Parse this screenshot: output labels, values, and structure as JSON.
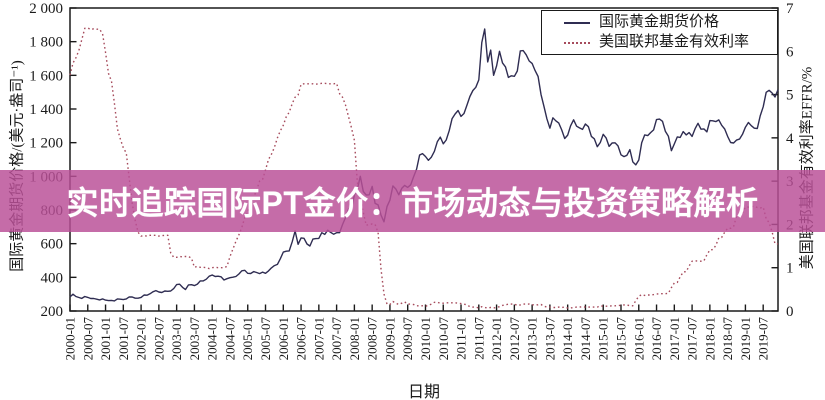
{
  "banner": {
    "text": "实时追踪国际PT金价：市场动态与投资策略解析",
    "bg_rgba": "rgba(186,80,151,0.84)"
  },
  "chart_data": {
    "type": "line",
    "xlabel": "日期",
    "ylabel_left": "国际黄金期货价格/(美元·盎司⁻¹)",
    "ylabel_right": "美国联邦基金有效利率EFFR/%",
    "x_start": "2000-01",
    "x_end": "2019-12",
    "x_interval": "monthly",
    "grid": false,
    "legend_position": "top-right",
    "ylim_left": [
      200,
      2000
    ],
    "ylim_right": [
      0,
      7
    ],
    "ytick_left_labels": [
      "2 000",
      "1 800",
      "1 600",
      "1 400",
      "1 200",
      "1 000",
      "800",
      "600",
      "400",
      "200"
    ],
    "ytick_left_values": [
      2000,
      1800,
      1600,
      1400,
      1200,
      1000,
      800,
      600,
      400,
      200
    ],
    "ytick_right_labels": [
      "7",
      "6",
      "5",
      "4",
      "3",
      "2",
      "1",
      "0"
    ],
    "ytick_right_values": [
      7,
      6,
      5,
      4,
      3,
      2,
      1,
      0
    ],
    "xtick_every_months": 6,
    "xtick_labels": [
      "2000-01",
      "2000-07",
      "2001-01",
      "2001-07",
      "2002-01",
      "2002-07",
      "2003-01",
      "2003-07",
      "2004-01",
      "2004-07",
      "2005-01",
      "2005-07",
      "2006-01",
      "2006-07",
      "2007-01",
      "2007-07",
      "2008-01",
      "2008-07",
      "2009-01",
      "2009-07",
      "2010-01",
      "2010-07",
      "2011-01",
      "2011-07",
      "2012-01",
      "2012-07",
      "2013-01",
      "2013-07",
      "2014-01",
      "2014-07",
      "2015-01",
      "2015-07",
      "2016-01",
      "2016-07",
      "2017-01",
      "2017-07",
      "2018-01",
      "2018-07",
      "2019-01",
      "2019-07"
    ],
    "series": [
      {
        "name": "国际黄金期货价格",
        "axis": "left",
        "style": "solid",
        "color": "#2f2d52",
        "values": [
          284,
          300,
          286,
          280,
          275,
          286,
          281,
          274,
          274,
          270,
          266,
          272,
          265,
          262,
          263,
          260,
          272,
          270,
          268,
          272,
          284,
          283,
          276,
          276,
          281,
          295,
          294,
          302,
          314,
          321,
          313,
          310,
          319,
          317,
          319,
          333,
          357,
          359,
          340,
          328,
          355,
          356,
          351,
          360,
          379,
          379,
          389,
          407,
          414,
          405,
          407,
          403,
          384,
          392,
          398,
          401,
          405,
          420,
          439,
          442,
          424,
          423,
          434,
          429,
          422,
          431,
          424,
          438,
          456,
          470,
          477,
          510,
          550,
          555,
          557,
          611,
          675,
          596,
          634,
          632,
          598,
          586,
          627,
          630,
          631,
          665,
          655,
          680,
          667,
          656,
          665,
          665,
          713,
          755,
          806,
          804,
          890,
          922,
          1000,
          910,
          889,
          890,
          940,
          839,
          830,
          770,
          730,
          820,
          858,
          943,
          924,
          890,
          929,
          946,
          934,
          950,
          997,
          1043,
          1127,
          1135,
          1118,
          1095,
          1114,
          1149,
          1205,
          1233,
          1193,
          1216,
          1271,
          1343,
          1370,
          1391,
          1356,
          1373,
          1424,
          1474,
          1510,
          1529,
          1573,
          1795,
          1875,
          1680,
          1750,
          1600,
          1656,
          1743,
          1674,
          1650,
          1588,
          1597,
          1594,
          1626,
          1745,
          1747,
          1722,
          1685,
          1671,
          1628,
          1593,
          1487,
          1414,
          1342,
          1286,
          1348,
          1330,
          1316,
          1276,
          1225,
          1245,
          1300,
          1336,
          1298,
          1288,
          1279,
          1311,
          1295,
          1237,
          1223,
          1176,
          1201,
          1250,
          1227,
          1178,
          1198,
          1199,
          1181,
          1128,
          1117,
          1125,
          1159,
          1086,
          1068,
          1097,
          1200,
          1246,
          1242,
          1260,
          1276,
          1337,
          1340,
          1327,
          1267,
          1238,
          1152,
          1192,
          1234,
          1231,
          1266,
          1246,
          1260,
          1237,
          1283,
          1315,
          1280,
          1282,
          1264,
          1331,
          1330,
          1325,
          1335,
          1303,
          1281,
          1238,
          1201,
          1198,
          1215,
          1221,
          1250,
          1292,
          1320,
          1301,
          1286,
          1284,
          1359,
          1413,
          1499,
          1511,
          1495,
          1471,
          1515
        ]
      },
      {
        "name": "美国联邦基金有效利率",
        "axis": "right",
        "style": "dotted",
        "color": "#a64b5c",
        "values": [
          5.45,
          5.73,
          5.85,
          6.02,
          6.27,
          6.53,
          6.54,
          6.5,
          6.52,
          6.51,
          6.51,
          6.4,
          5.98,
          5.49,
          5.31,
          4.8,
          4.21,
          3.97,
          3.77,
          3.65,
          3.07,
          2.49,
          2.09,
          1.82,
          1.73,
          1.74,
          1.73,
          1.75,
          1.75,
          1.75,
          1.73,
          1.74,
          1.75,
          1.75,
          1.34,
          1.24,
          1.24,
          1.26,
          1.25,
          1.26,
          1.26,
          1.22,
          1.01,
          1.03,
          1.01,
          1.01,
          1.0,
          0.98,
          1.0,
          1.01,
          1.0,
          1.0,
          1.0,
          1.03,
          1.26,
          1.43,
          1.61,
          1.76,
          1.93,
          2.16,
          2.28,
          2.5,
          2.63,
          2.79,
          3.0,
          3.04,
          3.26,
          3.5,
          3.62,
          3.78,
          4.0,
          4.16,
          4.29,
          4.49,
          4.59,
          4.79,
          4.94,
          4.99,
          5.24,
          5.25,
          5.25,
          5.25,
          5.25,
          5.24,
          5.25,
          5.26,
          5.26,
          5.25,
          5.25,
          5.25,
          5.26,
          5.02,
          4.94,
          4.76,
          4.49,
          4.24,
          3.94,
          2.98,
          2.61,
          2.28,
          1.98,
          2.0,
          2.01,
          2.0,
          1.81,
          0.97,
          0.39,
          0.16,
          0.15,
          0.22,
          0.18,
          0.15,
          0.18,
          0.21,
          0.16,
          0.16,
          0.15,
          0.12,
          0.12,
          0.12,
          0.11,
          0.13,
          0.16,
          0.2,
          0.2,
          0.18,
          0.18,
          0.19,
          0.19,
          0.19,
          0.19,
          0.18,
          0.17,
          0.16,
          0.14,
          0.1,
          0.09,
          0.09,
          0.07,
          0.1,
          0.08,
          0.07,
          0.08,
          0.07,
          0.08,
          0.1,
          0.13,
          0.14,
          0.16,
          0.16,
          0.16,
          0.13,
          0.14,
          0.16,
          0.16,
          0.16,
          0.14,
          0.15,
          0.14,
          0.15,
          0.11,
          0.09,
          0.09,
          0.08,
          0.08,
          0.09,
          0.08,
          0.09,
          0.07,
          0.07,
          0.08,
          0.09,
          0.09,
          0.1,
          0.09,
          0.09,
          0.09,
          0.09,
          0.09,
          0.12,
          0.11,
          0.11,
          0.11,
          0.12,
          0.12,
          0.13,
          0.13,
          0.14,
          0.14,
          0.12,
          0.12,
          0.24,
          0.34,
          0.38,
          0.36,
          0.37,
          0.37,
          0.38,
          0.39,
          0.4,
          0.4,
          0.4,
          0.41,
          0.54,
          0.65,
          0.66,
          0.79,
          0.9,
          0.91,
          1.04,
          1.15,
          1.16,
          1.15,
          1.15,
          1.16,
          1.3,
          1.41,
          1.42,
          1.51,
          1.69,
          1.7,
          1.82,
          1.91,
          1.91,
          1.95,
          2.19,
          2.2,
          2.27,
          2.4,
          2.4,
          2.41,
          2.42,
          2.39,
          2.38,
          2.4,
          2.13,
          2.04,
          1.83,
          1.55,
          1.55
        ]
      }
    ]
  }
}
